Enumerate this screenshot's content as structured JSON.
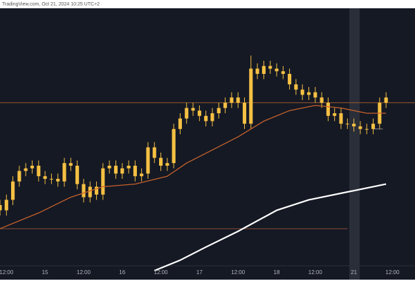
{
  "chart_data": {
    "type": "candlestick",
    "source": "TradingView.com, Oct 21, 2024 10:25 UTC+2",
    "xlim": [
      -2,
      127
    ],
    "ylim": [
      0,
      100
    ],
    "xticks": [
      {
        "value": 0,
        "label": "12:00"
      },
      {
        "value": 12,
        "label": "15"
      },
      {
        "value": 24,
        "label": "12:00"
      },
      {
        "value": 36,
        "label": "16"
      },
      {
        "value": 48,
        "label": "12:00"
      },
      {
        "value": 60,
        "label": "17"
      },
      {
        "value": 72,
        "label": "12:00"
      },
      {
        "value": 84,
        "label": "18"
      },
      {
        "value": 96,
        "label": "12:00"
      },
      {
        "value": 108,
        "label": "21"
      },
      {
        "value": 120,
        "label": "12:00"
      }
    ],
    "candle_color": "#f5c043",
    "candles": {
      "x": [
        -2,
        0,
        2,
        4,
        6,
        8,
        10,
        12,
        14,
        16,
        18,
        20,
        22,
        24,
        26,
        28,
        30,
        32,
        34,
        36,
        38,
        40,
        42,
        44,
        46,
        48,
        50,
        52,
        54,
        56,
        58,
        60,
        62,
        64,
        66,
        68,
        70,
        72,
        74,
        76,
        78,
        80,
        82,
        84,
        86,
        88,
        90,
        92,
        94,
        96,
        98,
        100,
        102,
        104,
        106,
        108,
        110,
        112,
        114,
        116,
        118
      ],
      "open": [
        25,
        23,
        27,
        34,
        38,
        39,
        40,
        36,
        35,
        35,
        34,
        41,
        40,
        33,
        28,
        32,
        29,
        39,
        40,
        37,
        39,
        40,
        36,
        37,
        47,
        43,
        40,
        41,
        54,
        58,
        62,
        61,
        59,
        57,
        60,
        62,
        64,
        66,
        64,
        56,
        77,
        75,
        78,
        77,
        76,
        75,
        71,
        69,
        67,
        68,
        66,
        64,
        59,
        60,
        56,
        56,
        55,
        54,
        54,
        56,
        64
      ],
      "high": [
        27,
        29,
        36,
        40,
        41,
        42,
        42,
        38,
        37,
        37,
        43,
        43,
        42,
        35,
        34,
        34,
        41,
        42,
        42,
        41,
        42,
        42,
        39,
        49,
        49,
        45,
        43,
        56,
        60,
        64,
        64,
        63,
        61,
        62,
        64,
        66,
        68,
        68,
        66,
        82,
        79,
        80,
        80,
        79,
        78,
        77,
        73,
        71,
        70,
        70,
        68,
        66,
        62,
        62,
        58,
        58,
        57,
        56,
        58,
        66,
        68
      ],
      "low": [
        21,
        21,
        25,
        32,
        36,
        37,
        34,
        33,
        33,
        32,
        32,
        38,
        31,
        26,
        26,
        27,
        27,
        37,
        35,
        35,
        37,
        34,
        34,
        35,
        41,
        38,
        38,
        39,
        52,
        56,
        59,
        57,
        55,
        55,
        58,
        60,
        62,
        62,
        54,
        54,
        73,
        73,
        75,
        74,
        73,
        69,
        67,
        65,
        65,
        64,
        62,
        57,
        57,
        54,
        54,
        53,
        52,
        52,
        52,
        54,
        62
      ],
      "close": [
        23,
        27,
        34,
        38,
        39,
        40,
        36,
        35,
        35,
        34,
        41,
        40,
        33,
        28,
        32,
        29,
        39,
        40,
        37,
        39,
        40,
        36,
        37,
        47,
        43,
        40,
        41,
        54,
        58,
        62,
        61,
        59,
        57,
        60,
        62,
        64,
        66,
        64,
        56,
        77,
        75,
        78,
        77,
        76,
        75,
        71,
        69,
        67,
        68,
        66,
        64,
        59,
        60,
        56,
        56,
        55,
        54,
        54,
        56,
        64,
        66
      ]
    },
    "lines": [
      {
        "color": "#c8622a",
        "width": 1.3,
        "x": [
          -2,
          10,
          20,
          30,
          40,
          50,
          56,
          64,
          72,
          80,
          88,
          96,
          104,
          112,
          118
        ],
        "values": [
          16,
          22,
          28,
          32,
          33,
          36,
          41,
          46,
          51,
          57,
          61,
          63,
          62,
          60,
          60
        ]
      },
      {
        "color": "#ffffff",
        "width": 2.2,
        "x": [
          46,
          54,
          62,
          72,
          84,
          94,
          106,
          118
        ],
        "values": [
          0,
          4,
          9,
          15,
          23,
          27,
          30,
          33
        ]
      }
    ],
    "levels": [
      {
        "value": 64,
        "color": "#9a5a2c",
        "x": [
          -2,
          127
        ]
      },
      {
        "value": 16,
        "color": "#8a4e3a",
        "x": [
          -2,
          106
        ]
      },
      {
        "value": 54,
        "color": "#8a8d96",
        "x": [
          114,
          117
        ]
      }
    ]
  }
}
